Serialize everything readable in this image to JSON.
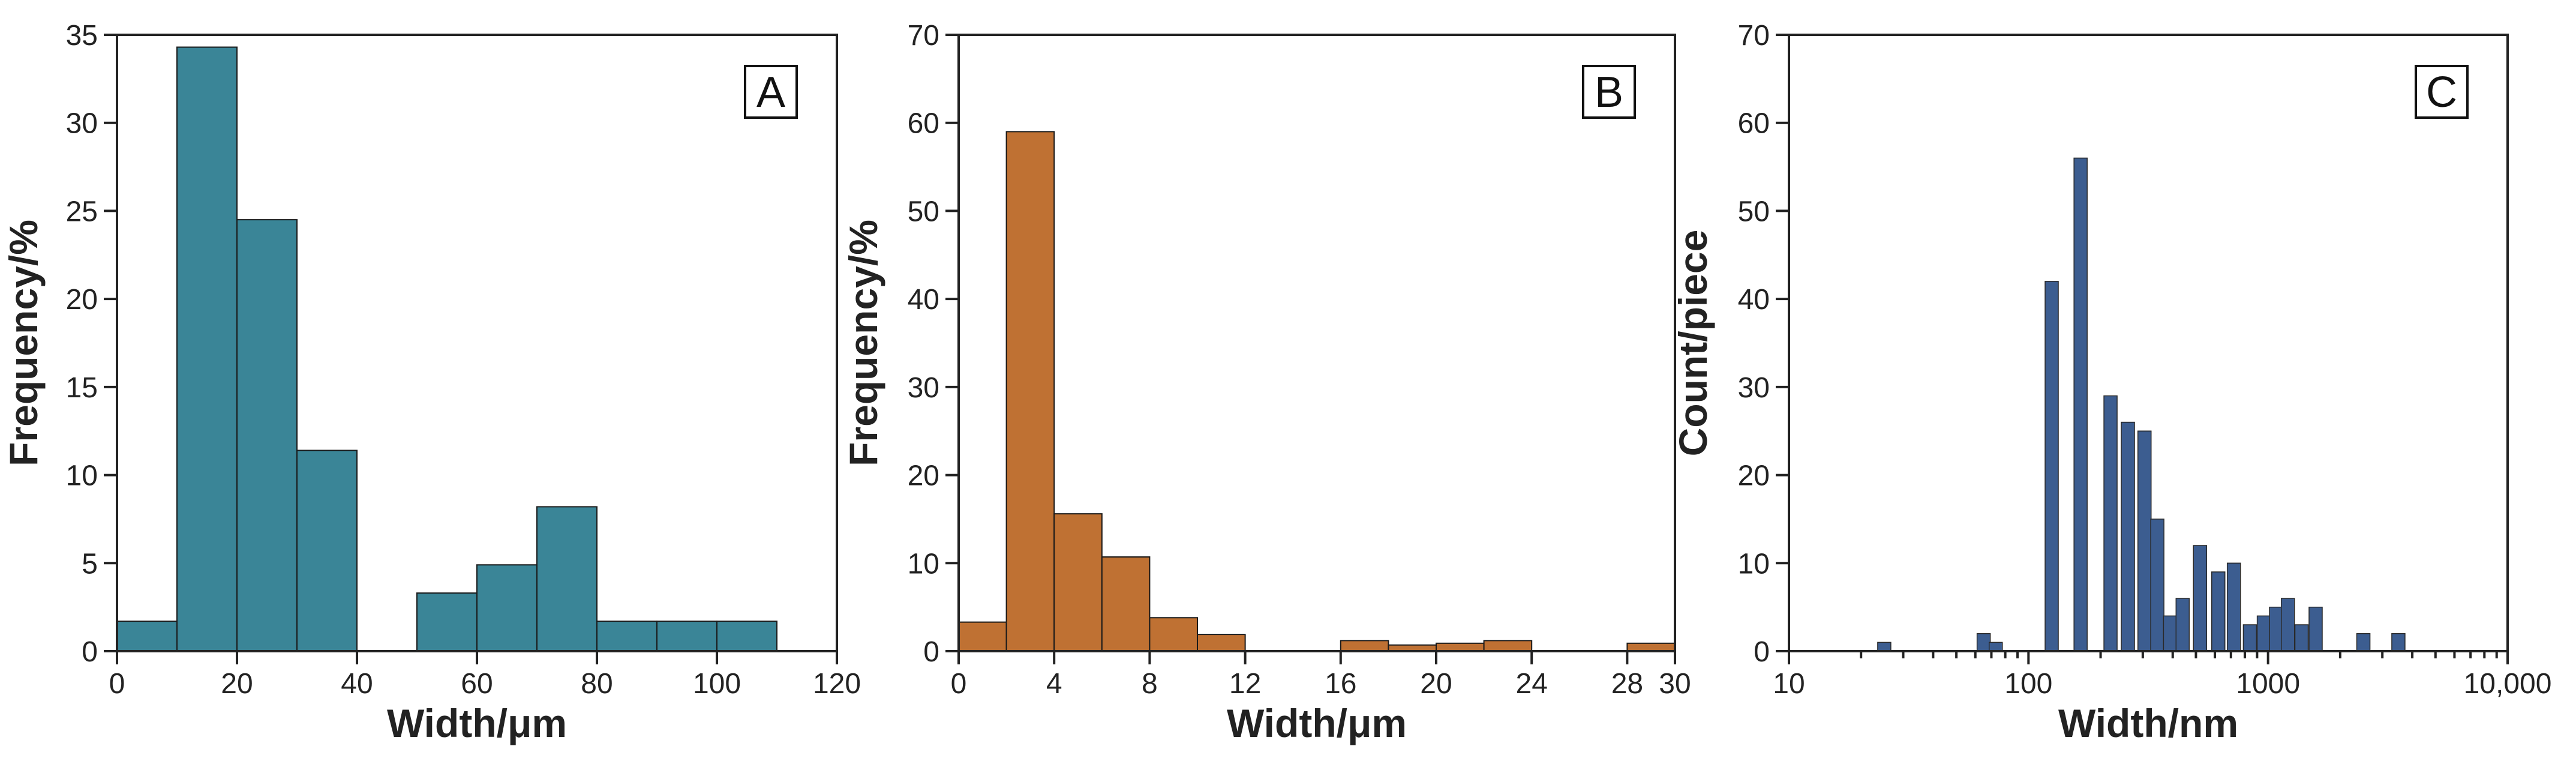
{
  "chart_data": [
    {
      "type": "bar",
      "panel_label": "A",
      "xlabel": "Width/μm",
      "ylabel": "Frequency/%",
      "xlim": [
        0,
        120
      ],
      "ylim": [
        0,
        35
      ],
      "x_ticks": [
        0,
        20,
        40,
        60,
        80,
        100,
        120
      ],
      "y_ticks": [
        0,
        5,
        10,
        15,
        20,
        25,
        30,
        35
      ],
      "bar_color": "#3a8597",
      "bins": [
        {
          "start": 0,
          "end": 10,
          "value": 1.7
        },
        {
          "start": 10,
          "end": 20,
          "value": 34.3
        },
        {
          "start": 20,
          "end": 30,
          "value": 24.5
        },
        {
          "start": 30,
          "end": 40,
          "value": 11.4
        },
        {
          "start": 40,
          "end": 50,
          "value": 0
        },
        {
          "start": 50,
          "end": 60,
          "value": 3.3
        },
        {
          "start": 60,
          "end": 70,
          "value": 4.9
        },
        {
          "start": 70,
          "end": 80,
          "value": 8.2
        },
        {
          "start": 80,
          "end": 90,
          "value": 1.7
        },
        {
          "start": 90,
          "end": 100,
          "value": 1.7
        },
        {
          "start": 100,
          "end": 110,
          "value": 1.7
        }
      ]
    },
    {
      "type": "bar",
      "panel_label": "B",
      "xlabel": "Width/μm",
      "ylabel": "Frequency/%",
      "xlim": [
        0,
        30
      ],
      "ylim": [
        0,
        70
      ],
      "x_ticks": [
        0,
        4,
        8,
        12,
        16,
        20,
        24,
        28,
        30
      ],
      "y_ticks": [
        0,
        10,
        20,
        30,
        40,
        50,
        60,
        70
      ],
      "bar_color": "#bf7133",
      "bins": [
        {
          "start": 0,
          "end": 2,
          "value": 3.3
        },
        {
          "start": 2,
          "end": 4,
          "value": 59
        },
        {
          "start": 4,
          "end": 6,
          "value": 15.6
        },
        {
          "start": 6,
          "end": 8,
          "value": 10.7
        },
        {
          "start": 8,
          "end": 10,
          "value": 3.8
        },
        {
          "start": 10,
          "end": 12,
          "value": 1.9
        },
        {
          "start": 16,
          "end": 18,
          "value": 1.2
        },
        {
          "start": 18,
          "end": 20,
          "value": 0.7
        },
        {
          "start": 20,
          "end": 22,
          "value": 0.9
        },
        {
          "start": 22,
          "end": 24,
          "value": 1.2
        },
        {
          "start": 28,
          "end": 30,
          "value": 0.9
        }
      ]
    },
    {
      "type": "bar",
      "panel_label": "C",
      "xlabel": "Width/nm",
      "ylabel": "Count/piece",
      "x_scale": "log",
      "xlim": [
        10,
        10000
      ],
      "ylim": [
        0,
        70
      ],
      "x_ticks": [
        10,
        100,
        1000,
        10000
      ],
      "x_tick_labels": [
        "10",
        "100",
        "1000",
        "10,000"
      ],
      "y_ticks": [
        0,
        10,
        20,
        30,
        40,
        50,
        60,
        70
      ],
      "bar_color": "#3c5d90",
      "bars": [
        {
          "x": 25,
          "value": 1
        },
        {
          "x": 65,
          "value": 2
        },
        {
          "x": 73,
          "value": 1
        },
        {
          "x": 125,
          "value": 42
        },
        {
          "x": 165,
          "value": 56
        },
        {
          "x": 220,
          "value": 29
        },
        {
          "x": 260,
          "value": 26
        },
        {
          "x": 305,
          "value": 25
        },
        {
          "x": 345,
          "value": 15
        },
        {
          "x": 390,
          "value": 4
        },
        {
          "x": 440,
          "value": 6
        },
        {
          "x": 520,
          "value": 12
        },
        {
          "x": 620,
          "value": 9
        },
        {
          "x": 720,
          "value": 10
        },
        {
          "x": 840,
          "value": 3
        },
        {
          "x": 960,
          "value": 4
        },
        {
          "x": 1080,
          "value": 5
        },
        {
          "x": 1210,
          "value": 6
        },
        {
          "x": 1380,
          "value": 3
        },
        {
          "x": 1580,
          "value": 5
        },
        {
          "x": 2500,
          "value": 2
        },
        {
          "x": 3500,
          "value": 2
        }
      ]
    }
  ]
}
